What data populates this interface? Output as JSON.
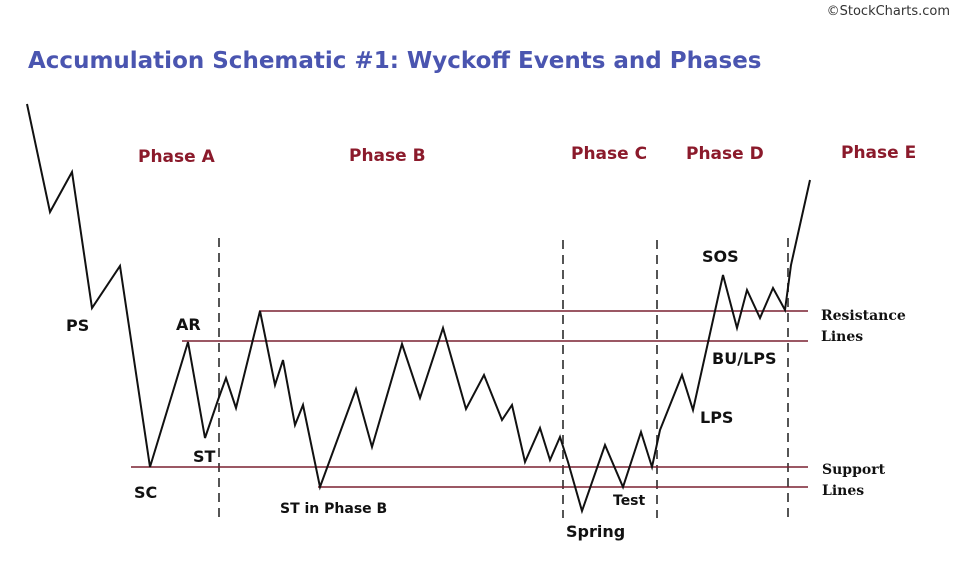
{
  "watermark": "©StockCharts.com",
  "title": "Accumulation Schematic #1: Wyckoff Events and Phases",
  "phases": [
    "Phase A",
    "Phase B",
    "Phase C",
    "Phase D",
    "Phase E"
  ],
  "events": {
    "ps": "PS",
    "sc": "SC",
    "ar": "AR",
    "st": "ST",
    "st_phase_b": "ST in Phase B",
    "spring": "Spring",
    "test": "Test",
    "lps": "LPS",
    "sos": "SOS",
    "bu_lps": "BU/LPS"
  },
  "line_labels": {
    "resistance_1": "Resistance",
    "resistance_2": "Lines",
    "support_1": "Support",
    "support_2": "Lines"
  },
  "colors": {
    "title": "#4a55b0",
    "phase_label": "#8b1a2b",
    "level_line": "#7a2030",
    "price_path": "#111111",
    "divider": "#555555"
  }
}
